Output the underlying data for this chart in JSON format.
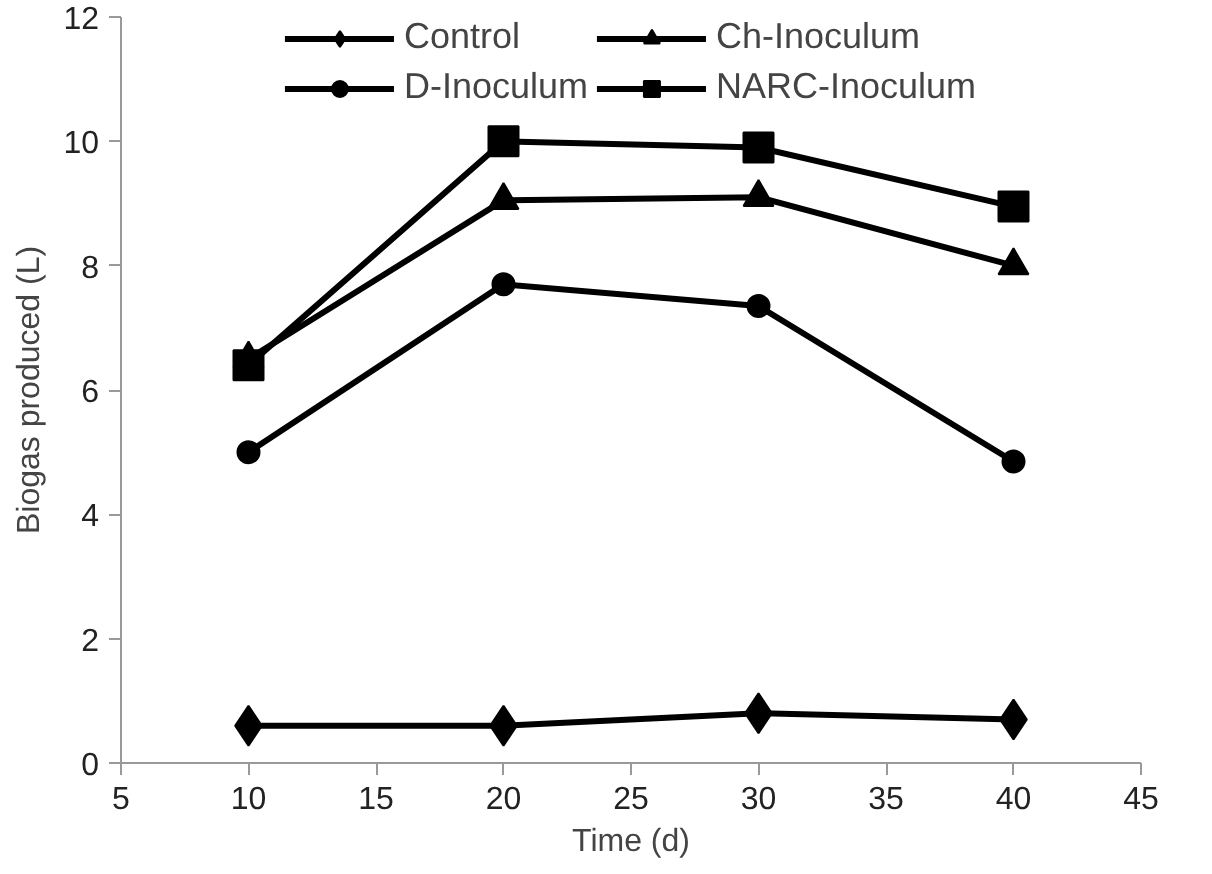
{
  "chart_data": {
    "type": "line",
    "xlabel": "Time (d)",
    "ylabel": "Biogas produced (L)",
    "x": [
      10,
      20,
      30,
      40
    ],
    "series": [
      {
        "name": "Control",
        "color": "#000000",
        "marker": "diamond",
        "values": [
          0.6,
          0.6,
          0.8,
          0.7
        ]
      },
      {
        "name": "D-Inoculum",
        "color": "#000000",
        "marker": "circle",
        "values": [
          5.0,
          7.7,
          7.35,
          4.85
        ]
      },
      {
        "name": "Ch-Inoculum",
        "color": "#000000",
        "marker": "triangle",
        "values": [
          6.5,
          9.05,
          9.1,
          8.0
        ]
      },
      {
        "name": "NARC-Inoculum",
        "color": "#000000",
        "marker": "square",
        "values": [
          6.4,
          10.0,
          9.9,
          8.95
        ]
      }
    ],
    "xlim": [
      5,
      45
    ],
    "xticks": [
      5,
      10,
      15,
      20,
      25,
      30,
      35,
      40,
      45
    ],
    "ylim": [
      0,
      12
    ],
    "yticks": [
      0,
      2,
      4,
      6,
      8,
      10,
      12
    ],
    "grid": false,
    "legend": "top",
    "line_style": "solid"
  }
}
